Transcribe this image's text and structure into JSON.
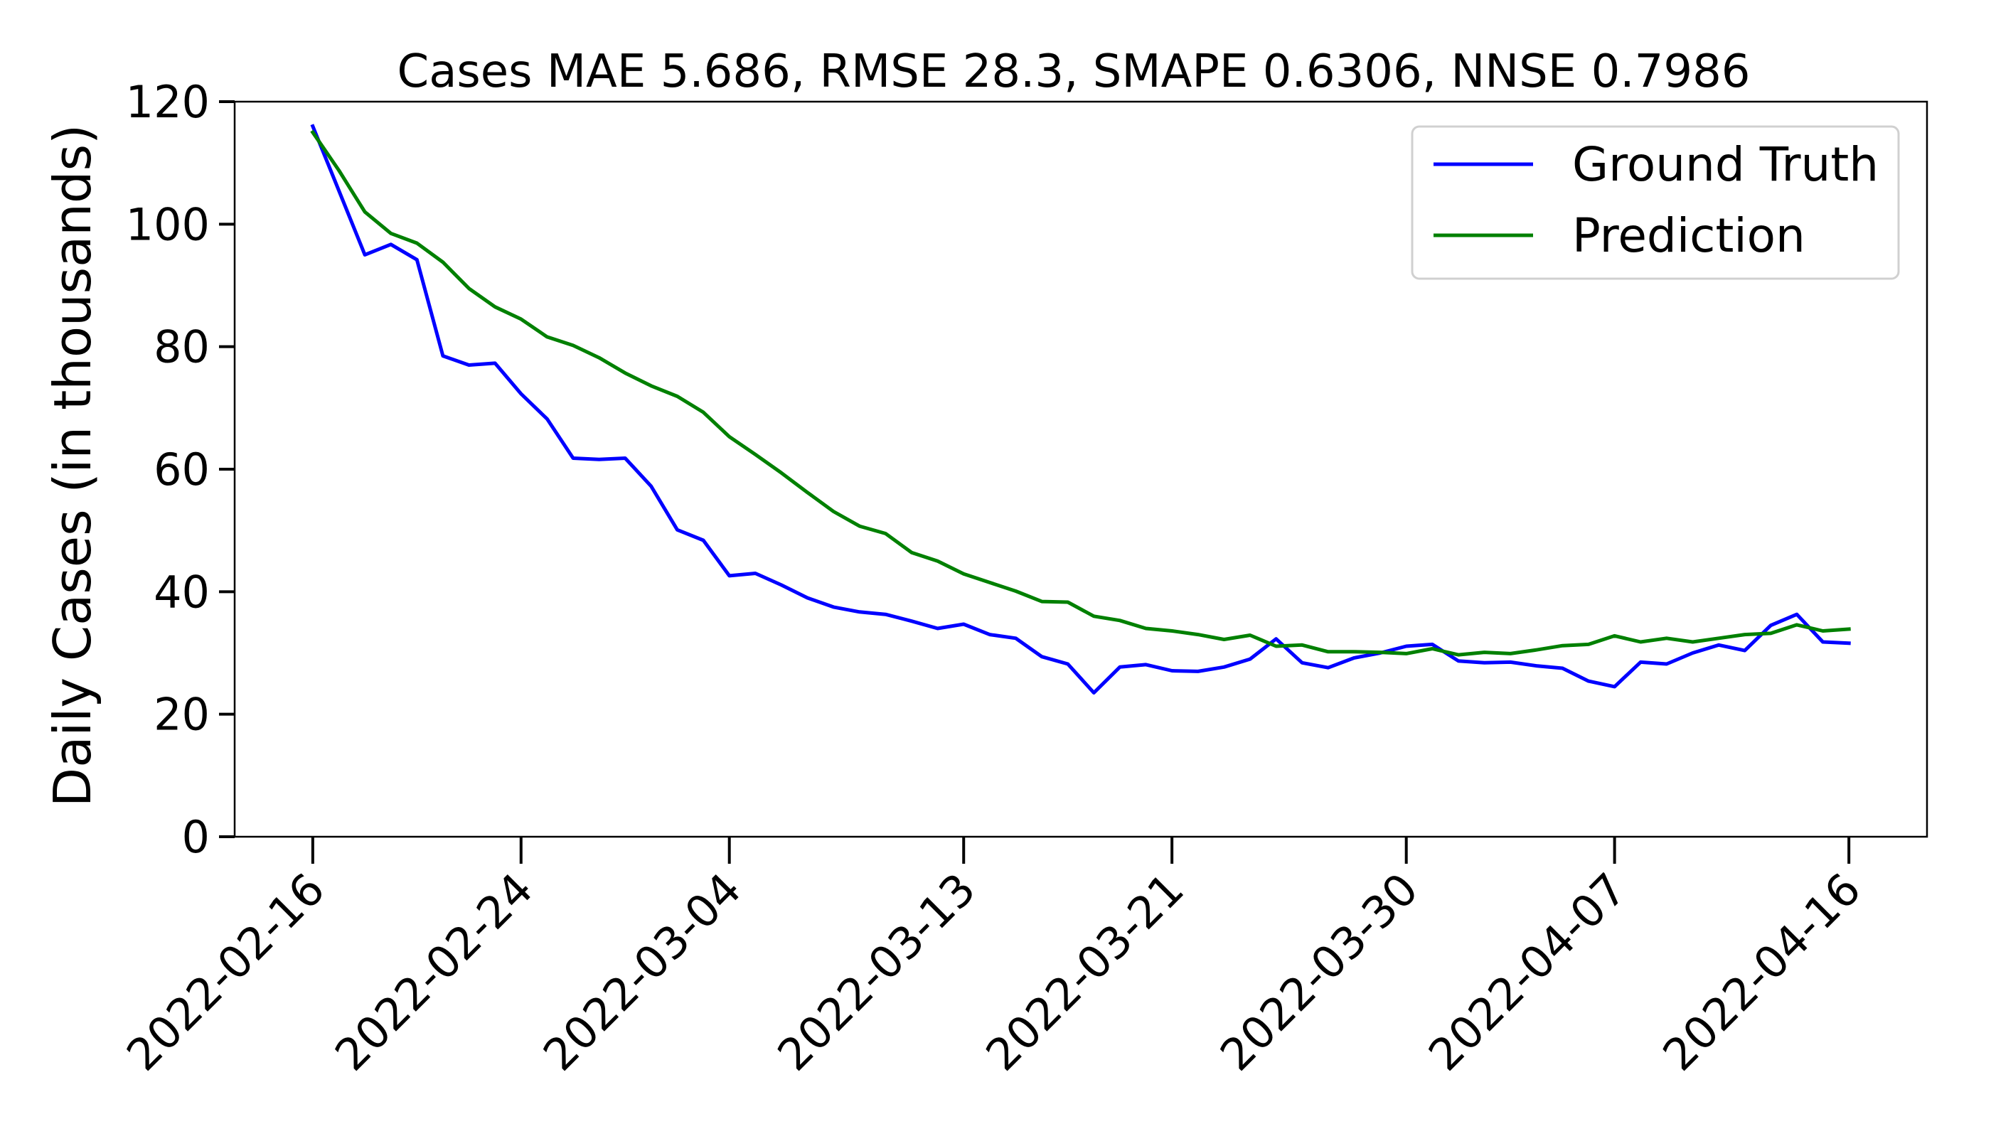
{
  "chart_data": {
    "type": "line",
    "title": "Cases MAE 5.686, RMSE 28.3, SMAPE 0.6306, NNSE 0.7986",
    "xlabel": "",
    "ylabel": "Daily Cases (in thousands)",
    "ylim": [
      0,
      120
    ],
    "xlim": [
      "2022-02-13",
      "2022-04-19"
    ],
    "yticks": [
      0,
      20,
      40,
      60,
      80,
      100,
      120
    ],
    "xtick_labels": [
      "2022-02-16",
      "2022-02-24",
      "2022-03-04",
      "2022-03-13",
      "2022-03-21",
      "2022-03-30",
      "2022-04-07",
      "2022-04-16"
    ],
    "grid": false,
    "legend_position": "top-right",
    "x_start": "2022-02-16",
    "x_step": "1 day",
    "series": [
      {
        "name": "Ground Truth",
        "color": "#0000ff",
        "values": [
          116,
          105.5,
          95,
          96.7,
          94.2,
          78.5,
          77,
          77.3,
          72.3,
          68.2,
          61.8,
          61.6,
          61.8,
          57.2,
          50.1,
          48.4,
          42.6,
          43,
          41.1,
          39,
          37.5,
          36.7,
          36.3,
          35.2,
          34,
          34.7,
          33,
          32.4,
          29.4,
          28.2,
          23.5,
          27.7,
          28.1,
          27.1,
          27,
          27.7,
          29,
          32.3,
          28.4,
          27.6,
          29.2,
          30,
          31.1,
          31.4,
          28.7,
          28.4,
          28.5,
          27.9,
          27.5,
          25.4,
          24.5,
          28.5,
          28.2,
          30,
          31.3,
          30.4,
          34.5,
          36.3,
          31.8,
          31.6
        ]
      },
      {
        "name": "Prediction",
        "color": "#008000",
        "values": [
          115,
          108.8,
          102,
          98.5,
          96.9,
          93.8,
          89.5,
          86.5,
          84.5,
          81.6,
          80.2,
          78.2,
          75.7,
          73.6,
          71.9,
          69.3,
          65.3,
          62.4,
          59.4,
          56.2,
          53.1,
          50.7,
          49.5,
          46.4,
          45,
          42.9,
          41.5,
          40.1,
          38.4,
          38.3,
          36,
          35.3,
          34,
          33.6,
          33,
          32.2,
          32.9,
          31.1,
          31.3,
          30.2,
          30.2,
          30.1,
          29.9,
          30.7,
          29.7,
          30.1,
          29.9,
          30.5,
          31.2,
          31.4,
          32.8,
          31.8,
          32.4,
          31.8,
          32.4,
          33,
          33.2,
          34.6,
          33.6,
          33.9
        ]
      }
    ]
  }
}
